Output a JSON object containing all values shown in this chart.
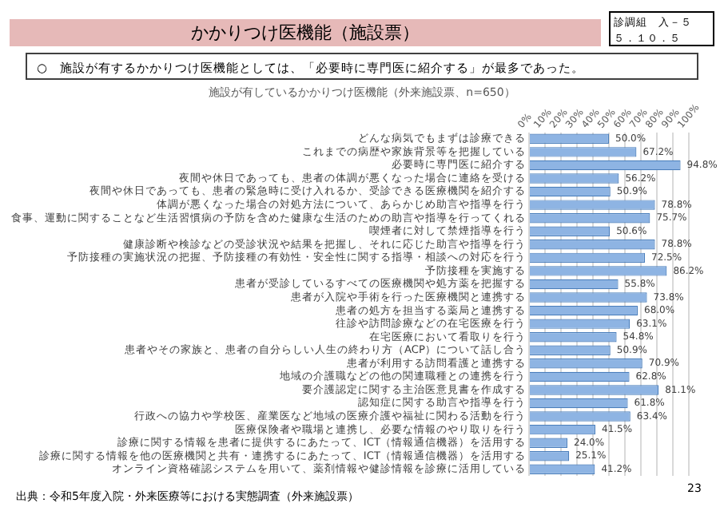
{
  "chart_data": {
    "type": "bar",
    "orientation": "horizontal",
    "title": "かかりつけ医機能（施設票）",
    "subtitle": "○　施設が有するかかりつけ医機能としては、「必要時に専門医に紹介する」が最多であった。",
    "annotations": [
      "施設が有しているかかりつけ医機能（外来施設票、n=650）",
      "診調組　入－５",
      "５．１０．５",
      "出典：令和5年度入院・外来医療等における実態調査（外来施設票）",
      "23"
    ],
    "categories": [
      "どんな病気でもまずは診療できる",
      "これまでの病歴や家族背景等を把握している",
      "必要時に専門医に紹介する",
      "夜間や休日であっても、患者の体調が悪くなった場合に連絡を受ける",
      "夜間や休日であっても、患者の緊急時に受け入れるか、受診できる医療機関を紹介する",
      "体調が悪くなった場合の対処方法について、あらかじめ助言や指導を行う",
      "食事、運動に関することなど生活習慣病の予防を含めた健康な生活のための助言や指導を行ってくれる",
      "喫煙者に対して禁煙指導を行う",
      "健康診断や検診などの受診状況や結果を把握し、それに応じた助言や指導を行う",
      "予防接種の実施状況の把握、予防接種の有効性・安全性に関する指導・相談への対応を行う",
      "予防接種を実施する",
      "患者が受診しているすべての医療機関や処方薬を把握する",
      "患者が入院や手術を行った医療機関と連携する",
      "患者の処方を担当する薬局と連携する",
      "往診や訪問診療などの在宅医療を行う",
      "在宅医療において看取りを行う",
      "患者やその家族と、患者の自分らしい人生の終わり方（ACP）について話し合う",
      "患者が利用する訪問看護と連携する",
      "地域の介護職などの他の関連職種との連携を行う",
      "要介護認定に関する主治医意見書を作成する",
      "認知症に関する助言や指導を行う",
      "行政への協力や学校医、産業医など地域の医療介護や福祉に関わる活動を行う",
      "医療保険者や職場と連携し、必要な情報のやり取りを行う",
      "診療に関する情報を患者に提供するにあたって、ICT（情報通信機器）を活用する",
      "診療に関する情報を他の医療機関と共有・連携するにあたって、ICT（情報通信機器）を活用する",
      "オンライン資格確認システムを用いて、薬剤情報や健診情報を診療に活用している"
    ],
    "values": [
      50.0,
      67.2,
      94.8,
      56.2,
      50.9,
      78.8,
      75.7,
      50.6,
      78.8,
      72.5,
      86.2,
      55.8,
      73.8,
      68.0,
      63.1,
      54.8,
      50.9,
      70.9,
      62.8,
      81.1,
      61.8,
      63.4,
      41.5,
      24.0,
      25.1,
      41.2
    ],
    "value_labels": [
      "50.0%",
      "67.2%",
      "94.8%",
      "56.2%",
      "50.9%",
      "78.8%",
      "75.7%",
      "50.6%",
      "78.8%",
      "72.5%",
      "86.2%",
      "55.8%",
      "73.8%",
      "68.0%",
      "63.1%",
      "54.8%",
      "50.9%",
      "70.9%",
      "62.8%",
      "81.1%",
      "61.8%",
      "63.4%",
      "41.5%",
      "24.0%",
      "25.1%",
      "41.2%"
    ],
    "color": "#8eb4e3",
    "xlim": [
      0,
      100
    ],
    "xticks": [
      {
        "value": 0,
        "label": "0%"
      },
      {
        "value": 10,
        "label": "10%"
      },
      {
        "value": 20,
        "label": "20%"
      },
      {
        "value": 30,
        "label": "30%"
      },
      {
        "value": 40,
        "label": "40%"
      },
      {
        "value": 50,
        "label": "50%"
      },
      {
        "value": 60,
        "label": "60%"
      },
      {
        "value": 70,
        "label": "70%"
      },
      {
        "value": 80,
        "label": "80%"
      },
      {
        "value": 90,
        "label": "90%"
      },
      {
        "value": 100,
        "label": "100%"
      }
    ],
    "grid": "x",
    "legend": false
  }
}
